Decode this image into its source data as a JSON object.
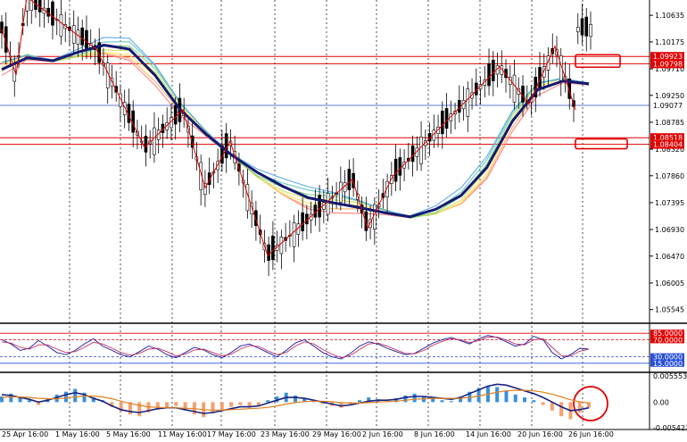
{
  "colors": {
    "background": "#ffffff",
    "grid": "#000000",
    "candle_up": "#000000",
    "candle_down": "#000000",
    "trend": "#141a6e",
    "zigzag": "#e00000",
    "zone": "#e00000",
    "hline": "#2a4fd6",
    "hist_pos": "#3a8fd8",
    "hist_neg": "#f4a070",
    "macd_line": "#1a237e",
    "signal_line": "#e08020",
    "stoch_main": "#1a1aa0",
    "stoch_signal": "#c03060",
    "stoch_extra": "#000000"
  },
  "chart_data": [
    {
      "type": "candlestick",
      "title": "",
      "y_ticks": [
        "1.10635",
        "1.10175",
        "1.09710",
        "1.09250",
        "1.08785",
        "1.08320",
        "1.07860",
        "1.07395",
        "1.06930",
        "1.06470",
        "1.06005",
        "1.05545"
      ],
      "ylim": [
        1.0537,
        1.109
      ],
      "x_labels": [
        "25 Apr 16:00",
        "1 May 16:00",
        "5 May 16:00",
        "11 May 16:00",
        "17 May 16:00",
        "23 May 16:00",
        "29 May 16:00",
        "2 Jun 16:00",
        "8 Jun 16:00",
        "14 Jun 16:00",
        "20 Jun 16:00",
        "26 Jun 16:00"
      ],
      "x_gridlines": [
        "1 May 16:00",
        "5 May 16:00",
        "11 May 16:00",
        "17 May 16:00",
        "23 May 16:00",
        "29 May 16:00",
        "2 Jun 16:00",
        "8 Jun 16:00",
        "14 Jun 16:00",
        "20 Jun 16:00",
        "26 Jun 16:00"
      ],
      "trend_line": [
        1.097,
        1.099,
        1.0985,
        1.1,
        1.1012,
        1.1005,
        1.096,
        1.09,
        1.0858,
        1.0822,
        1.0792,
        1.0768,
        1.0748,
        1.0739,
        1.0731,
        1.0722,
        1.0715,
        1.0728,
        1.0752,
        1.08,
        1.088,
        1.0935,
        1.095,
        1.0945
      ],
      "zigzag": [
        1.104,
        1.096,
        1.1095,
        1.1005,
        1.0935,
        1.0835,
        1.09,
        1.0765,
        1.0845,
        1.0648,
        1.078,
        1.0695,
        1.0785,
        1.0975,
        1.091,
        1.101,
        1.09
      ],
      "resistance_zone": {
        "top": "1.09923",
        "bottom": "1.09798"
      },
      "support_zone": {
        "top": "1.08518",
        "bottom": "1.08404"
      },
      "current_price": "1.09077",
      "zone_labels": [
        "1.09923",
        "1.09798",
        "1.08518",
        "1.08404"
      ]
    },
    {
      "type": "line",
      "title": "",
      "levels": [
        "85.0000",
        "70.0000",
        "30.0000",
        "15.0000"
      ],
      "ylim": [
        0,
        100
      ],
      "series": [
        {
          "values": [
            70,
            60,
            45,
            50,
            68,
            55,
            40,
            35,
            45,
            60,
            72,
            55,
            45,
            35,
            30,
            42,
            55,
            48,
            35,
            28,
            40,
            52,
            46,
            35,
            28,
            40,
            55,
            60,
            50,
            40,
            30,
            45,
            62,
            70,
            55,
            40,
            30,
            25,
            38,
            55,
            65,
            60,
            50,
            42,
            35,
            38,
            50,
            62,
            70,
            75,
            68,
            60,
            72,
            80,
            75,
            65,
            55,
            60,
            78,
            70,
            40,
            25,
            35,
            50,
            48
          ]
        },
        {
          "values": [
            65,
            62,
            52,
            48,
            58,
            58,
            48,
            40,
            42,
            52,
            64,
            60,
            50,
            40,
            34,
            38,
            48,
            50,
            42,
            32,
            36,
            46,
            48,
            40,
            32,
            36,
            48,
            56,
            54,
            44,
            35,
            40,
            55,
            65,
            60,
            47,
            36,
            28,
            33,
            47,
            60,
            62,
            55,
            46,
            38,
            37,
            45,
            57,
            66,
            72,
            70,
            63,
            68,
            76,
            76,
            69,
            60,
            58,
            70,
            72,
            52,
            33,
            32,
            43,
            48
          ]
        }
      ]
    },
    {
      "type": "bar",
      "title": "",
      "y_ticks": [
        "0.0055538",
        "0.00",
        "-0.0054237"
      ],
      "ylim": [
        -0.0054237,
        0.0055538
      ],
      "histogram": [
        0.0012,
        0.0018,
        0.001,
        0.0004,
        -0.0006,
        0.0008,
        0.0016,
        0.0022,
        0.0028,
        0.002,
        0.001,
        0.0004,
        -0.001,
        -0.002,
        -0.0026,
        -0.003,
        -0.0022,
        -0.0016,
        -0.0012,
        -0.0008,
        -0.0018,
        -0.0026,
        -0.0032,
        -0.0024,
        -0.0016,
        -0.001,
        -0.0006,
        -0.0012,
        -0.0008,
        0.0004,
        0.0012,
        0.002,
        0.0014,
        0.0008,
        0.0002,
        -0.0004,
        -0.0008,
        -0.0012,
        -0.0006,
        0.0004,
        0.001,
        0.0006,
        0.0002,
        0.0008,
        0.0014,
        0.0018,
        0.0012,
        0.0008,
        0.0004,
        0.0002,
        0.0012,
        0.0022,
        0.003,
        0.0034,
        0.0032,
        0.0024,
        0.0016,
        0.001,
        0.0004,
        -0.0006,
        -0.0018,
        -0.003,
        -0.0036,
        -0.0022,
        -0.0012
      ],
      "series": [
        {
          "values": [
            0.0016,
            0.0014,
            0.001,
            0.0006,
            0.0,
            0.0004,
            0.001,
            0.0016,
            0.002,
            0.0016,
            0.0008,
            0.0002,
            -0.0008,
            -0.0016,
            -0.002,
            -0.0022,
            -0.0018,
            -0.0014,
            -0.0012,
            -0.0012,
            -0.0016,
            -0.002,
            -0.0024,
            -0.0022,
            -0.0018,
            -0.0014,
            -0.001,
            -0.001,
            -0.0008,
            -0.0002,
            0.0004,
            0.001,
            0.001,
            0.0008,
            0.0004,
            0.0,
            -0.0004,
            -0.0008,
            -0.0006,
            -0.0002,
            0.0002,
            0.0004,
            0.0004,
            0.0006,
            0.001,
            0.0012,
            0.0012,
            0.001,
            0.0008,
            0.0006,
            0.001,
            0.0018,
            0.0026,
            0.0034,
            0.0038,
            0.0036,
            0.003,
            0.0024,
            0.0018,
            0.001,
            0.0,
            -0.001,
            -0.0018,
            -0.0016,
            -0.0012
          ]
        },
        {
          "values": [
            0.001,
            0.0011,
            0.0011,
            0.001,
            0.0008,
            0.0007,
            0.0007,
            0.0009,
            0.0011,
            0.0013,
            0.0013,
            0.0011,
            0.0007,
            0.0002,
            -0.0003,
            -0.0007,
            -0.001,
            -0.0011,
            -0.0012,
            -0.0012,
            -0.0013,
            -0.0014,
            -0.0016,
            -0.0017,
            -0.0017,
            -0.0016,
            -0.0015,
            -0.0014,
            -0.0013,
            -0.0011,
            -0.0008,
            -0.0004,
            -0.0001,
            0.0001,
            0.0002,
            0.0002,
            0.0001,
            -0.0001,
            -0.0002,
            -0.0002,
            -0.0001,
            0.0,
            0.0001,
            0.0002,
            0.0004,
            0.0006,
            0.0007,
            0.0008,
            0.0008,
            0.0008,
            0.0008,
            0.001,
            0.0013,
            0.0017,
            0.0021,
            0.0024,
            0.0025,
            0.0025,
            0.0024,
            0.0021,
            0.0017,
            0.0011,
            0.0005,
            0.0001,
            -0.0002
          ]
        }
      ]
    }
  ]
}
